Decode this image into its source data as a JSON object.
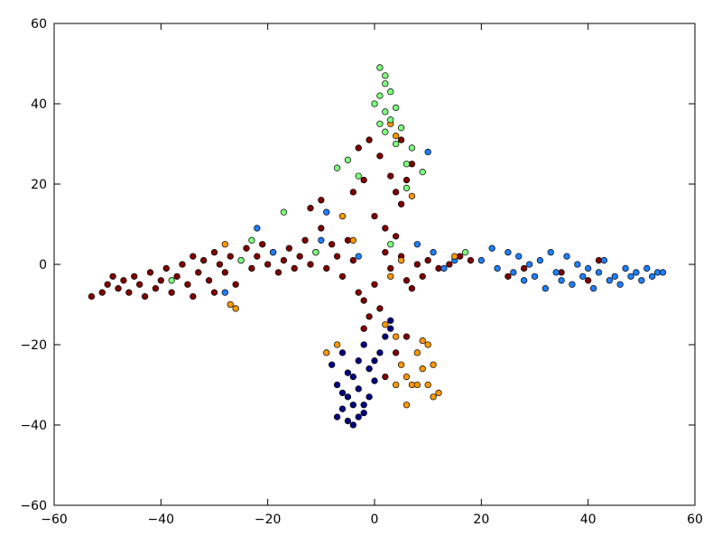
{
  "chart_data": {
    "type": "scatter",
    "xlim": [
      -60,
      60
    ],
    "ylim": [
      -60,
      60
    ],
    "xticks": [
      {
        "value": -60,
        "label": "−60"
      },
      {
        "value": -40,
        "label": "−40"
      },
      {
        "value": -20,
        "label": "−20"
      },
      0,
      20,
      40,
      60
    ],
    "yticks": [
      {
        "value": -60,
        "label": "−60"
      },
      {
        "value": -40,
        "label": "−40"
      },
      {
        "value": -20,
        "label": "−20"
      },
      0,
      20,
      40,
      60
    ],
    "grid": false,
    "series": [
      {
        "color": "#7f0000",
        "x": [
          -53,
          -51,
          -50,
          -49,
          -48,
          -47,
          -46,
          -45,
          -44,
          -43,
          -42,
          -41,
          -40,
          -39,
          -38,
          -37,
          -36,
          -35,
          -34,
          -33,
          -32,
          -31,
          -30,
          -29,
          -28,
          -27,
          -26,
          -25,
          -24,
          -23,
          -22,
          -21,
          -20,
          -19,
          -18,
          -17,
          -16,
          -15,
          -14,
          -13,
          -12,
          -11,
          -10,
          -9,
          -8,
          -7,
          -6,
          -5,
          -4,
          -3,
          -2,
          -1,
          0,
          1,
          2,
          3,
          4,
          5,
          6,
          7,
          8,
          9,
          10,
          12,
          14,
          16,
          18,
          25,
          28,
          35,
          40,
          42,
          -3,
          -1,
          1,
          3,
          4,
          5,
          6,
          7,
          -4,
          -2,
          0,
          2,
          5,
          -30,
          -34,
          -12,
          -10,
          4,
          2,
          -2,
          6
        ],
        "y": [
          -8,
          -7,
          -5,
          -3,
          -6,
          -4,
          -7,
          -3,
          -5,
          -8,
          -2,
          -6,
          -4,
          -1,
          -7,
          -3,
          0,
          -5,
          2,
          -2,
          1,
          -4,
          3,
          0,
          -2,
          2,
          -5,
          1,
          4,
          -1,
          2,
          5,
          0,
          3,
          -2,
          1,
          4,
          -1,
          2,
          6,
          0,
          3,
          9,
          -1,
          5,
          2,
          -3,
          6,
          1,
          -7,
          -9,
          -13,
          -5,
          -11,
          3,
          -1,
          7,
          2,
          -4,
          -6,
          0,
          -3,
          1,
          -1,
          0,
          2,
          1,
          -3,
          -1,
          -2,
          -4,
          1,
          29,
          31,
          27,
          22,
          18,
          15,
          21,
          25,
          18,
          21,
          12,
          9,
          31,
          -7,
          -8,
          14,
          16,
          -22,
          -28,
          -16,
          -18
        ]
      },
      {
        "color": "#1e7fff",
        "x": [
          20,
          22,
          23,
          25,
          26,
          27,
          28,
          29,
          30,
          31,
          32,
          33,
          34,
          35,
          36,
          37,
          38,
          39,
          40,
          41,
          42,
          43,
          44,
          45,
          46,
          47,
          48,
          49,
          50,
          51,
          52,
          53,
          54,
          13,
          15,
          11,
          8,
          -22,
          -19,
          -9,
          -3,
          10,
          -28,
          -10
        ],
        "y": [
          1,
          4,
          -1,
          3,
          -2,
          2,
          -4,
          0,
          -3,
          1,
          -6,
          3,
          -2,
          -4,
          2,
          -5,
          0,
          -3,
          -1,
          -6,
          -2,
          1,
          -4,
          -3,
          -5,
          -1,
          -3,
          -2,
          -4,
          -1,
          -3,
          -2,
          -2,
          -1,
          1,
          3,
          5,
          9,
          3,
          13,
          2,
          28,
          -7,
          6
        ]
      },
      {
        "color": "#00007f",
        "x": [
          -8,
          -7,
          -7,
          -6,
          -6,
          -5,
          -5,
          -4,
          -4,
          -3,
          -3,
          -2,
          -2,
          -1,
          -1,
          0,
          1,
          2,
          3,
          -5,
          -6,
          -4,
          -3,
          -2,
          0,
          3
        ],
        "y": [
          -25,
          -38,
          -30,
          -36,
          -22,
          -33,
          -39,
          -28,
          -35,
          -31,
          -24,
          -37,
          -20,
          -26,
          -33,
          -29,
          -22,
          -18,
          -16,
          -27,
          -32,
          -40,
          -38,
          -35,
          -24,
          -14
        ]
      },
      {
        "color": "#ff9900",
        "x": [
          2,
          4,
          5,
          6,
          7,
          8,
          9,
          10,
          11,
          10,
          11,
          12,
          6,
          8,
          4,
          9,
          -9,
          -7,
          -26,
          -27,
          -28,
          -4,
          5,
          7,
          4,
          3,
          -6,
          15,
          3
        ],
        "y": [
          -15,
          -18,
          -25,
          -28,
          -30,
          -22,
          -26,
          -20,
          -25,
          -30,
          -33,
          -32,
          -35,
          -30,
          -30,
          -19,
          -22,
          -20,
          -11,
          -10,
          5,
          6,
          1,
          17,
          32,
          35,
          12,
          2,
          -3
        ]
      },
      {
        "color": "#7fff7f",
        "x": [
          1,
          2,
          2,
          3,
          1,
          0,
          2,
          4,
          3,
          1,
          5,
          2,
          4,
          7,
          6,
          -7,
          -3,
          -5,
          6,
          -17,
          -23,
          -38,
          -25,
          9,
          3,
          17,
          -11
        ],
        "y": [
          49,
          47,
          45,
          43,
          42,
          40,
          38,
          39,
          36,
          35,
          34,
          33,
          30,
          29,
          25,
          24,
          22,
          26,
          19,
          13,
          6,
          -4,
          1,
          23,
          5,
          3,
          3
        ]
      }
    ]
  }
}
